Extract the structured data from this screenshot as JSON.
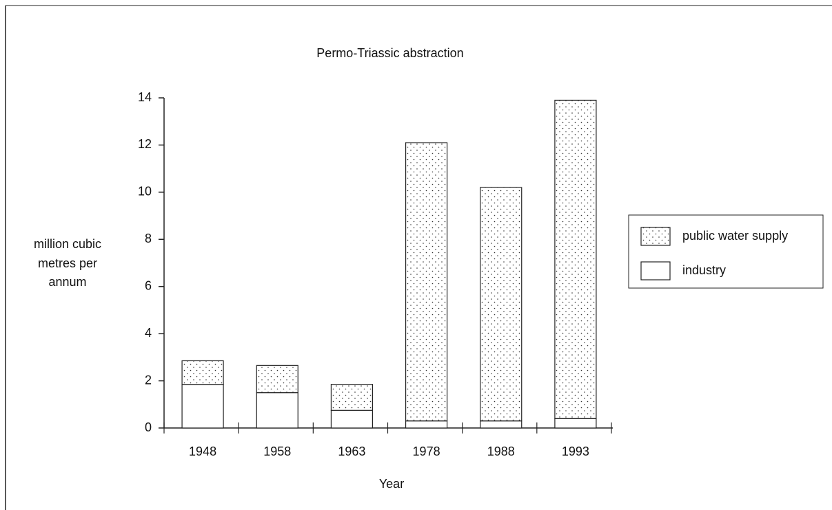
{
  "chart_data": {
    "type": "bar",
    "stacked": true,
    "title": "Permo-Triassic abstraction",
    "ylabel": [
      "million cubic",
      "metres per",
      "annum"
    ],
    "xlabel": "Year",
    "categories": [
      "1948",
      "1958",
      "1963",
      "1978",
      "1988",
      "1993"
    ],
    "series": [
      {
        "name": "industry",
        "color": "#ffffff",
        "pattern": "none",
        "values": [
          1.85,
          1.5,
          0.75,
          0.3,
          0.3,
          0.4
        ]
      },
      {
        "name": "public water supply",
        "color": "#ffffff",
        "pattern": "dots",
        "values": [
          1.0,
          1.15,
          1.1,
          11.8,
          9.9,
          13.5
        ]
      }
    ],
    "ylim": [
      0,
      14
    ],
    "yticks": [
      0,
      2,
      4,
      6,
      8,
      10,
      12,
      14
    ],
    "grid": false,
    "legend": "right"
  }
}
